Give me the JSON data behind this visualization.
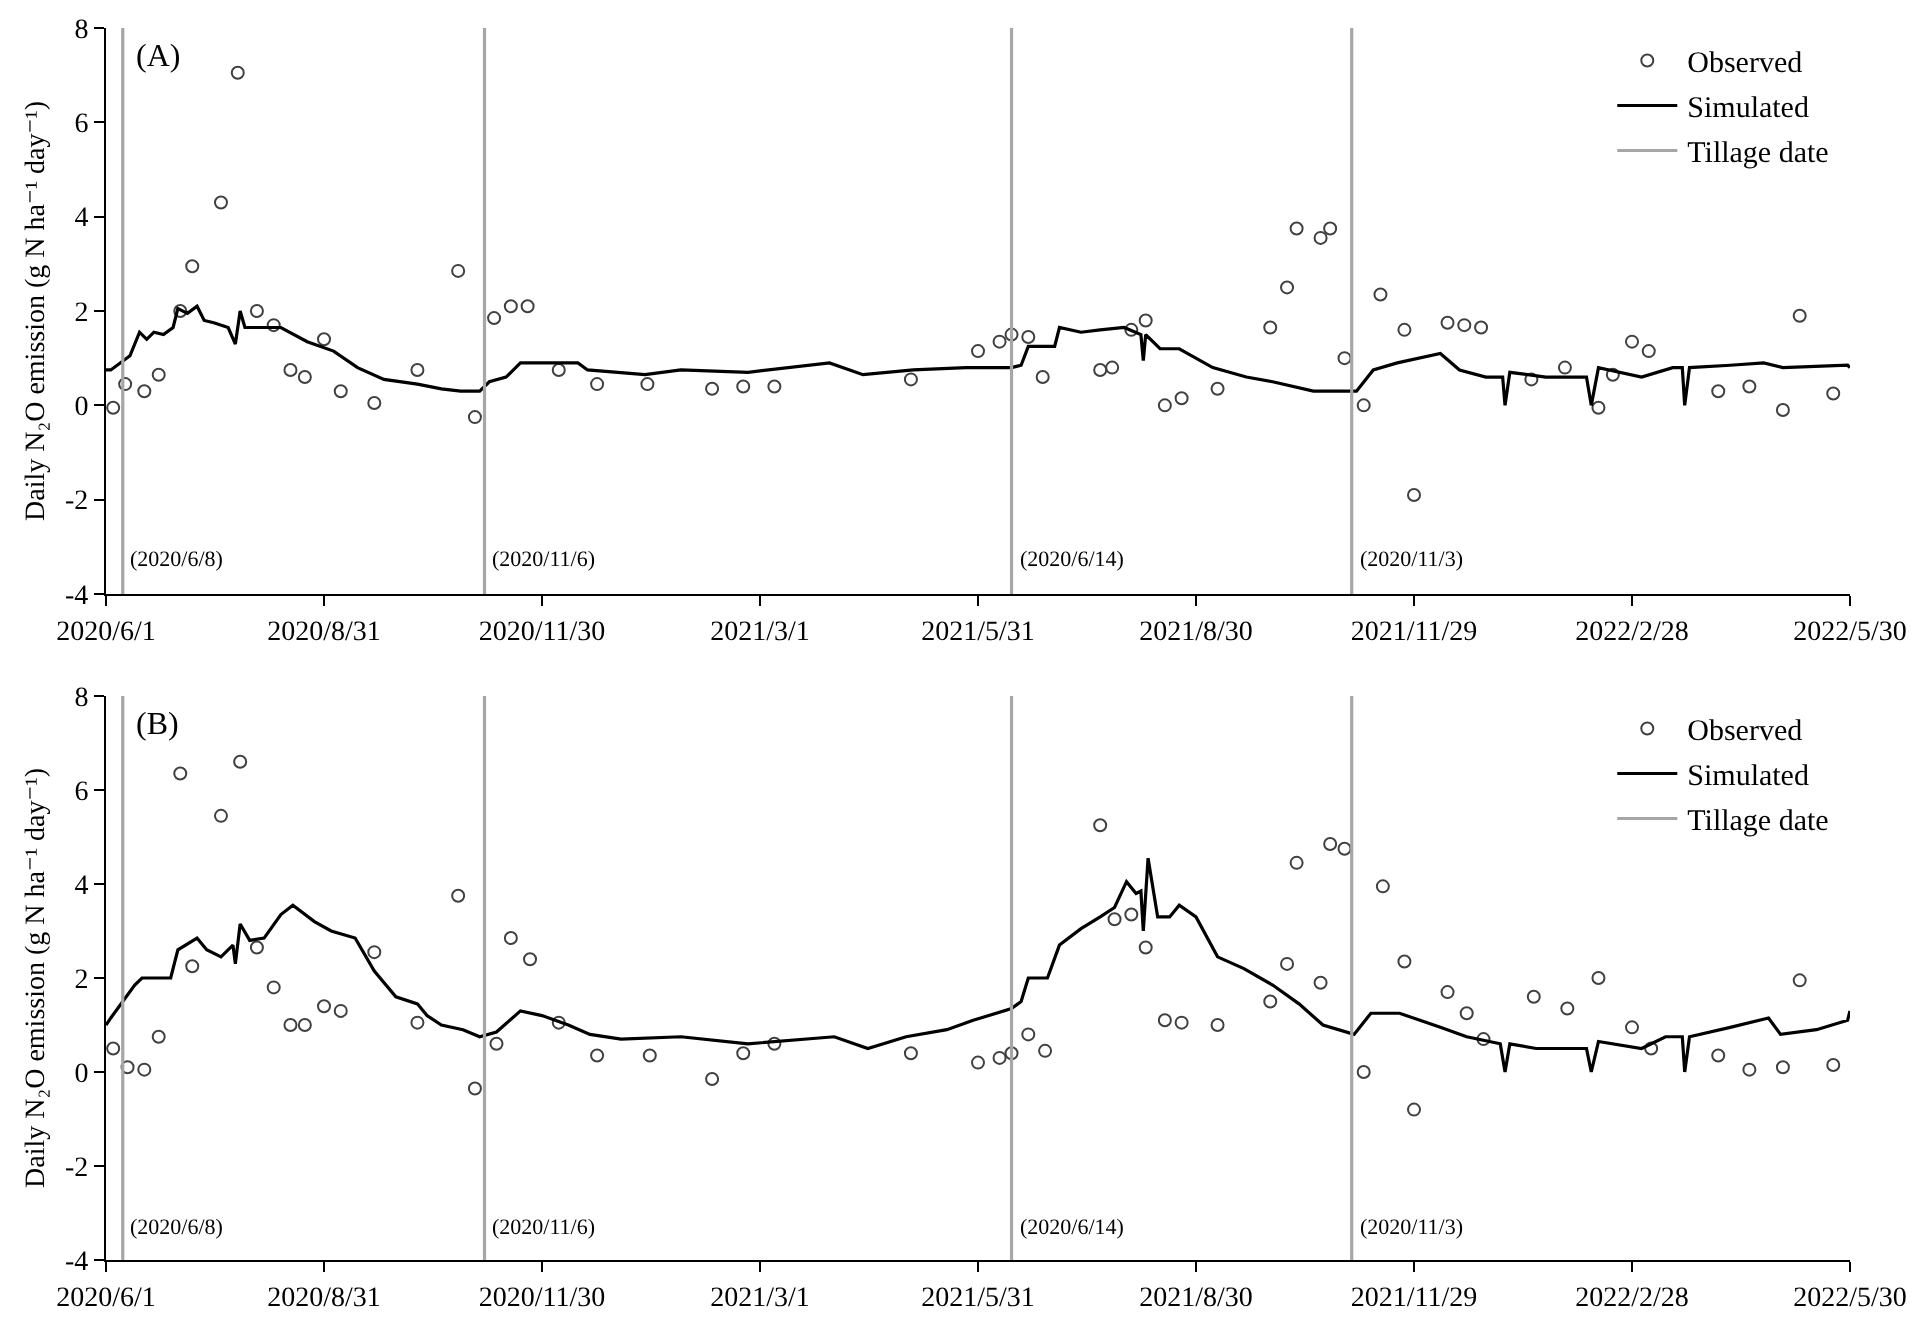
{
  "chart_data": [
    {
      "type": "line",
      "ylabel": "Daily N₂O emission (g N ha⁻¹ day⁻¹)",
      "xlim": [
        "2020-06-01",
        "2022-05-30"
      ],
      "xticks": [
        {
          "value": "2020-06-01",
          "label": "2020/6/1"
        },
        {
          "value": "2020-08-31",
          "label": "2020/8/31"
        },
        {
          "value": "2020-11-30",
          "label": "2020/11/30"
        },
        {
          "value": "2021-03-01",
          "label": "2021/3/1"
        },
        {
          "value": "2021-05-31",
          "label": "2021/5/31"
        },
        {
          "value": "2021-08-30",
          "label": "2021/8/30"
        },
        {
          "value": "2021-11-29",
          "label": "2021/11/29"
        },
        {
          "value": "2022-02-28",
          "label": "2022/2/28"
        },
        {
          "value": "2022-05-30",
          "label": "2022/5/30"
        }
      ],
      "ylim": [
        -4,
        8
      ],
      "yticks": [
        -4,
        -2,
        0,
        2,
        4,
        6,
        8
      ],
      "legend": "top right",
      "annotations": [
        "(A)",
        {
          "text": "(2020/6/8)",
          "x": "2020-06-08",
          "y": -3.3
        },
        {
          "text": "(2020/11/6)",
          "x": "2020-11-06",
          "y": -3.3
        },
        {
          "text": "(2020/6/14)",
          "x": "2021-06-14",
          "y": -3.3
        },
        {
          "text": "(2020/11/3)",
          "x": "2021-11-03",
          "y": -3.3
        }
      ],
      "series": [
        {
          "name": "Observed",
          "type": "scatter",
          "marker": "circle",
          "color": "#404040",
          "x": [
            "2020-06-04",
            "2020-06-09",
            "2020-06-17",
            "2020-06-23",
            "2020-07-02",
            "2020-07-07",
            "2020-07-19",
            "2020-07-26",
            "2020-08-03",
            "2020-08-10",
            "2020-08-17",
            "2020-08-23",
            "2020-08-31",
            "2020-09-07",
            "2020-09-21",
            "2020-10-09",
            "2020-10-26",
            "2020-11-02",
            "2020-11-10",
            "2020-11-17",
            "2020-11-24",
            "2020-12-07",
            "2020-12-23",
            "2021-01-13",
            "2021-02-09",
            "2021-02-22",
            "2021-03-07",
            "2021-05-03",
            "2021-05-31",
            "2021-06-09",
            "2021-06-14",
            "2021-06-21",
            "2021-06-27",
            "2021-07-21",
            "2021-07-26",
            "2021-08-03",
            "2021-08-09",
            "2021-08-17",
            "2021-08-24",
            "2021-09-08",
            "2021-09-30",
            "2021-10-07",
            "2021-10-11",
            "2021-10-21",
            "2021-10-25",
            "2021-10-31",
            "2021-11-08",
            "2021-11-15",
            "2021-11-25",
            "2021-11-29",
            "2021-12-13",
            "2021-12-20",
            "2021-12-27",
            "2022-01-17",
            "2022-01-31",
            "2022-02-14",
            "2022-02-20",
            "2022-02-28",
            "2022-03-07",
            "2022-04-05",
            "2022-04-18",
            "2022-05-02",
            "2022-05-09",
            "2022-05-23"
          ],
          "values": [
            -0.05,
            0.45,
            0.3,
            0.65,
            2.0,
            2.95,
            4.3,
            7.05,
            2.0,
            1.7,
            0.75,
            0.6,
            1.4,
            0.3,
            0.05,
            0.75,
            2.85,
            -0.25,
            1.85,
            2.1,
            2.1,
            0.75,
            0.45,
            0.45,
            0.35,
            0.4,
            0.4,
            0.55,
            1.15,
            1.35,
            1.5,
            1.45,
            0.6,
            0.75,
            0.8,
            1.6,
            1.8,
            0.0,
            0.15,
            0.35,
            1.65,
            2.5,
            3.75,
            3.55,
            3.75,
            1.0,
            0.0,
            2.35,
            1.6,
            -1.9,
            1.75,
            1.7,
            1.65,
            0.55,
            0.8,
            -0.05,
            0.65,
            1.35,
            1.15,
            0.3,
            0.4,
            -0.1,
            1.9,
            0.25
          ]
        },
        {
          "name": "Simulated",
          "color": "#000000",
          "x": [
            "2020-06-01",
            "2020-06-03",
            "2020-06-11",
            "2020-06-15",
            "2020-06-18",
            "2020-06-21",
            "2020-06-25",
            "2020-06-29",
            "2020-07-01",
            "2020-07-05",
            "2020-07-09",
            "2020-07-12",
            "2020-07-16",
            "2020-07-22",
            "2020-07-25",
            "2020-07-27",
            "2020-07-29",
            "2020-08-13",
            "2020-08-24",
            "2020-09-04",
            "2020-09-14",
            "2020-09-25",
            "2020-10-09",
            "2020-10-19",
            "2020-10-27",
            "2020-11-04",
            "2020-11-08",
            "2020-11-15",
            "2020-11-21",
            "2020-12-15",
            "2020-12-19",
            "2021-01-12",
            "2021-01-27",
            "2021-02-24",
            "2021-03-30",
            "2021-04-13",
            "2021-05-04",
            "2021-05-26",
            "2021-06-14",
            "2021-06-18",
            "2021-06-21",
            "2021-07-02",
            "2021-07-04",
            "2021-07-13",
            "2021-07-21",
            "2021-07-31",
            "2021-08-07",
            "2021-08-08",
            "2021-08-09",
            "2021-08-15",
            "2021-08-23",
            "2021-09-06",
            "2021-09-20",
            "2021-10-01",
            "2021-10-18",
            "2021-11-05",
            "2021-11-12",
            "2021-11-22",
            "2021-12-10",
            "2021-12-18",
            "2021-12-29",
            "2022-01-05",
            "2022-01-06",
            "2022-01-08",
            "2022-01-23",
            "2022-02-09",
            "2022-02-11",
            "2022-02-14",
            "2022-03-04",
            "2022-03-17",
            "2022-03-21",
            "2022-03-22",
            "2022-03-24",
            "2022-04-10",
            "2022-04-24",
            "2022-05-02",
            "2022-05-29",
            "2022-05-30"
          ],
          "values": [
            0.75,
            0.75,
            1.05,
            1.55,
            1.4,
            1.55,
            1.5,
            1.65,
            2.05,
            1.95,
            2.1,
            1.8,
            1.75,
            1.65,
            1.3,
            2.0,
            1.65,
            1.65,
            1.35,
            1.15,
            0.8,
            0.55,
            0.45,
            0.35,
            0.3,
            0.3,
            0.5,
            0.6,
            0.9,
            0.9,
            0.75,
            0.65,
            0.75,
            0.7,
            0.9,
            0.65,
            0.75,
            0.8,
            0.8,
            0.85,
            1.25,
            1.25,
            1.65,
            1.55,
            1.6,
            1.65,
            1.5,
            0.95,
            1.5,
            1.2,
            1.2,
            0.8,
            0.6,
            0.5,
            0.3,
            0.3,
            0.75,
            0.9,
            1.1,
            0.75,
            0.6,
            0.6,
            0.0,
            0.7,
            0.6,
            0.6,
            0.0,
            0.8,
            0.6,
            0.8,
            0.8,
            0.0,
            0.8,
            0.85,
            0.9,
            0.8,
            0.85,
            0.8
          ]
        },
        {
          "name": "Tillage date",
          "color": "#a6a6a6",
          "x": [
            "2020-06-08",
            "2020-06-08",
            null,
            "2020-11-06",
            "2020-11-06",
            null,
            "2021-06-14",
            "2021-06-14",
            null,
            "2021-11-03",
            "2021-11-03"
          ],
          "values": [
            -4,
            8,
            null,
            -4,
            8,
            null,
            -4,
            8,
            null,
            -4,
            8
          ]
        }
      ]
    },
    {
      "type": "line",
      "ylabel": "Daily N₂O emission (g N ha⁻¹ day⁻¹)",
      "xlim": [
        "2020-06-01",
        "2022-05-30"
      ],
      "xticks": [
        {
          "value": "2020-06-01",
          "label": "2020/6/1"
        },
        {
          "value": "2020-08-31",
          "label": "2020/8/31"
        },
        {
          "value": "2020-11-30",
          "label": "2020/11/30"
        },
        {
          "value": "2021-03-01",
          "label": "2021/3/1"
        },
        {
          "value": "2021-05-31",
          "label": "2021/5/31"
        },
        {
          "value": "2021-08-30",
          "label": "2021/8/30"
        },
        {
          "value": "2021-11-29",
          "label": "2021/11/29"
        },
        {
          "value": "2022-02-28",
          "label": "2022/2/28"
        },
        {
          "value": "2022-05-30",
          "label": "2022/5/30"
        }
      ],
      "ylim": [
        -4,
        8
      ],
      "yticks": [
        -4,
        -2,
        0,
        2,
        4,
        6,
        8
      ],
      "legend": "top right",
      "annotations": [
        "(B)",
        {
          "text": "(2020/6/8)",
          "x": "2020-06-08",
          "y": -3.3
        },
        {
          "text": "(2020/11/6)",
          "x": "2020-11-06",
          "y": -3.3
        },
        {
          "text": "(2020/6/14)",
          "x": "2021-06-14",
          "y": -3.3
        },
        {
          "text": "(2020/11/3)",
          "x": "2021-11-03",
          "y": -3.3
        }
      ],
      "series": [
        {
          "name": "Observed",
          "type": "scatter",
          "marker": "circle",
          "color": "#404040",
          "x": [
            "2020-06-04",
            "2020-06-10",
            "2020-06-17",
            "2020-06-23",
            "2020-07-02",
            "2020-07-07",
            "2020-07-19",
            "2020-07-27",
            "2020-08-03",
            "2020-08-10",
            "2020-08-17",
            "2020-08-23",
            "2020-08-31",
            "2020-09-07",
            "2020-09-21",
            "2020-10-09",
            "2020-10-26",
            "2020-11-02",
            "2020-11-11",
            "2020-11-17",
            "2020-11-25",
            "2020-12-07",
            "2020-12-23",
            "2021-01-14",
            "2021-02-09",
            "2021-02-22",
            "2021-03-07",
            "2021-05-03",
            "2021-05-31",
            "2021-06-09",
            "2021-06-14",
            "2021-06-21",
            "2021-06-28",
            "2021-07-21",
            "2021-07-27",
            "2021-08-03",
            "2021-08-09",
            "2021-08-17",
            "2021-08-24",
            "2021-09-08",
            "2021-09-30",
            "2021-10-07",
            "2021-10-11",
            "2021-10-21",
            "2021-10-25",
            "2021-10-31",
            "2021-11-08",
            "2021-11-16",
            "2021-11-25",
            "2021-11-29",
            "2021-12-13",
            "2021-12-21",
            "2021-12-28",
            "2022-01-18",
            "2022-02-01",
            "2022-02-14",
            "2022-02-28",
            "2022-03-08",
            "2022-04-05",
            "2022-04-18",
            "2022-05-02",
            "2022-05-09",
            "2022-05-23"
          ],
          "values": [
            0.5,
            0.1,
            0.05,
            0.75,
            6.35,
            2.25,
            5.45,
            6.6,
            2.65,
            1.8,
            1.0,
            1.0,
            1.4,
            1.3,
            2.55,
            1.05,
            3.75,
            -0.35,
            0.6,
            2.85,
            2.4,
            1.05,
            0.35,
            0.35,
            -0.15,
            0.4,
            0.6,
            0.4,
            0.2,
            0.3,
            0.4,
            0.8,
            0.45,
            5.25,
            3.25,
            3.35,
            2.65,
            1.1,
            1.05,
            1.0,
            1.5,
            2.3,
            4.45,
            1.9,
            4.85,
            4.75,
            0.0,
            3.95,
            2.35,
            -0.8,
            1.7,
            1.25,
            0.7,
            1.6,
            1.35,
            2.0,
            0.95,
            0.5,
            0.35,
            0.05,
            0.1,
            1.95,
            0.15
          ]
        },
        {
          "name": "Simulated",
          "color": "#000000",
          "x": [
            "2020-06-01",
            "2020-06-03",
            "2020-06-13",
            "2020-06-16",
            "2020-06-21",
            "2020-06-28",
            "2020-07-01",
            "2020-07-09",
            "2020-07-13",
            "2020-07-19",
            "2020-07-24",
            "2020-07-25",
            "2020-07-27",
            "2020-07-31",
            "2020-08-06",
            "2020-08-13",
            "2020-08-18",
            "2020-08-27",
            "2020-09-03",
            "2020-09-13",
            "2020-09-21",
            "2020-09-30",
            "2020-10-09",
            "2020-10-13",
            "2020-10-19",
            "2020-10-28",
            "2020-11-04",
            "2020-11-11",
            "2020-11-21",
            "2020-11-30",
            "2020-12-11",
            "2020-12-20",
            "2021-01-02",
            "2021-01-27",
            "2021-02-24",
            "2021-04-01",
            "2021-04-15",
            "2021-05-01",
            "2021-05-18",
            "2021-05-29",
            "2021-06-14",
            "2021-06-18",
            "2021-06-21",
            "2021-06-29",
            "2021-07-04",
            "2021-07-13",
            "2021-07-21",
            "2021-07-27",
            "2021-08-01",
            "2021-08-05",
            "2021-08-07",
            "2021-08-08",
            "2021-08-10",
            "2021-08-14",
            "2021-08-19",
            "2021-08-23",
            "2021-08-30",
            "2021-09-08",
            "2021-09-19",
            "2021-10-01",
            "2021-10-12",
            "2021-10-22",
            "2021-11-04",
            "2021-11-11",
            "2021-11-23",
            "2021-12-10",
            "2021-12-21",
            "2022-01-04",
            "2022-01-06",
            "2022-01-08",
            "2022-01-19",
            "2022-02-09",
            "2022-02-11",
            "2022-02-14",
            "2022-03-04",
            "2022-03-14",
            "2022-03-21",
            "2022-03-22",
            "2022-03-24",
            "2022-04-10",
            "2022-04-26",
            "2022-05-01",
            "2022-05-16",
            "2022-05-29",
            "2022-05-30"
          ],
          "values": [
            1.0,
            1.15,
            1.85,
            2.0,
            2.0,
            2.0,
            2.6,
            2.85,
            2.6,
            2.45,
            2.7,
            2.3,
            3.15,
            2.8,
            2.85,
            3.35,
            3.55,
            3.2,
            3.0,
            2.85,
            2.15,
            1.6,
            1.45,
            1.2,
            1.0,
            0.9,
            0.75,
            0.85,
            1.3,
            1.2,
            1.0,
            0.8,
            0.7,
            0.75,
            0.6,
            0.75,
            0.5,
            0.75,
            0.9,
            1.1,
            1.35,
            1.5,
            2.0,
            2.0,
            2.7,
            3.05,
            3.3,
            3.5,
            4.05,
            3.8,
            3.85,
            3.0,
            4.55,
            3.3,
            3.3,
            3.55,
            3.3,
            2.45,
            2.2,
            1.85,
            1.45,
            1.0,
            0.8,
            1.25,
            1.25,
            0.95,
            0.75,
            0.6,
            0.0,
            0.6,
            0.5,
            0.5,
            0.0,
            0.65,
            0.5,
            0.75,
            0.75,
            0.0,
            0.75,
            0.95,
            1.15,
            0.8,
            0.9,
            1.1,
            1.3
          ]
        },
        {
          "name": "Tillage date",
          "color": "#a6a6a6",
          "x": [
            "2020-06-08",
            "2020-06-08",
            null,
            "2020-11-06",
            "2020-11-06",
            null,
            "2021-06-14",
            "2021-06-14",
            null,
            "2021-11-03",
            "2021-11-03"
          ],
          "values": [
            -4,
            8,
            null,
            -4,
            8,
            null,
            -4,
            8,
            null,
            -4,
            8
          ]
        }
      ]
    }
  ]
}
